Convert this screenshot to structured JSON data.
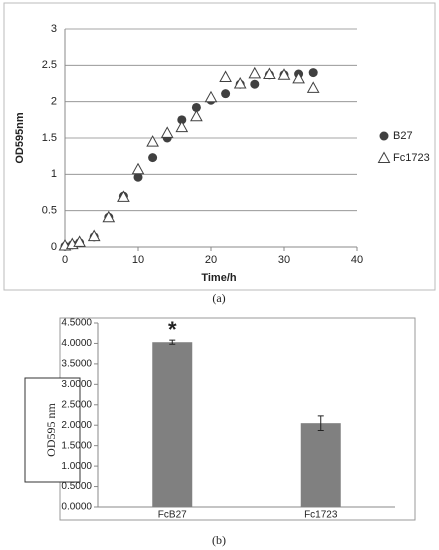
{
  "chart_data": [
    {
      "type": "scatter",
      "caption": "(a)",
      "x_label": "Time/h",
      "y_label": "OD595nm",
      "xlim": [
        0,
        40
      ],
      "xticks": [
        0,
        10,
        20,
        30,
        40
      ],
      "ylim": [
        0,
        3
      ],
      "yticks": [
        0,
        0.5,
        1,
        1.5,
        2,
        2.5,
        3
      ],
      "grid": true,
      "legend": "right",
      "series": [
        {
          "name": "B27",
          "color": "#404040",
          "marker": "circle",
          "x": [
            0,
            1,
            2,
            4,
            6,
            8,
            10,
            12,
            14,
            16,
            18,
            20,
            22,
            24,
            26,
            28,
            30,
            32,
            34
          ],
          "values": [
            0.01,
            0.03,
            0.06,
            0.14,
            0.41,
            0.7,
            0.96,
            1.23,
            1.5,
            1.75,
            1.92,
            2.02,
            2.11,
            2.24,
            2.24,
            2.37,
            2.37,
            2.38,
            2.4
          ]
        },
        {
          "name": "Fc1723",
          "color": "#404040",
          "marker": "triangle",
          "x": [
            0,
            1,
            2,
            4,
            6,
            8,
            10,
            12,
            14,
            16,
            18,
            20,
            22,
            24,
            26,
            28,
            30,
            32,
            34
          ],
          "values": [
            0.02,
            0.04,
            0.07,
            0.15,
            0.41,
            0.69,
            1.07,
            1.45,
            1.57,
            1.65,
            1.8,
            2.06,
            2.34,
            2.25,
            2.39,
            2.38,
            2.37,
            2.32,
            2.19
          ]
        }
      ]
    },
    {
      "type": "bar",
      "caption": "(b)",
      "y_label": "OD595 nm",
      "annotation": "*",
      "categories": [
        "FcB27",
        "Fc1723"
      ],
      "values": [
        4.03,
        2.05
      ],
      "errors": [
        0.05,
        0.18
      ],
      "color": "#808080",
      "ylim": [
        0,
        4.5
      ],
      "yticks": [
        {
          "value": 0,
          "label": "0.0000"
        },
        {
          "value": 0.5,
          "label": "0.5000"
        },
        {
          "value": 1,
          "label": "1.0000"
        },
        {
          "value": 1.5,
          "label": "1.5000"
        },
        {
          "value": 2,
          "label": "2.0000"
        },
        {
          "value": 2.5,
          "label": "2.5000"
        },
        {
          "value": 3,
          "label": "3.0000"
        },
        {
          "value": 3.5,
          "label": "3.5000"
        },
        {
          "value": 4,
          "label": "4.0000"
        },
        {
          "value": 4.5,
          "label": "4.5000"
        }
      ],
      "grid": false
    }
  ]
}
